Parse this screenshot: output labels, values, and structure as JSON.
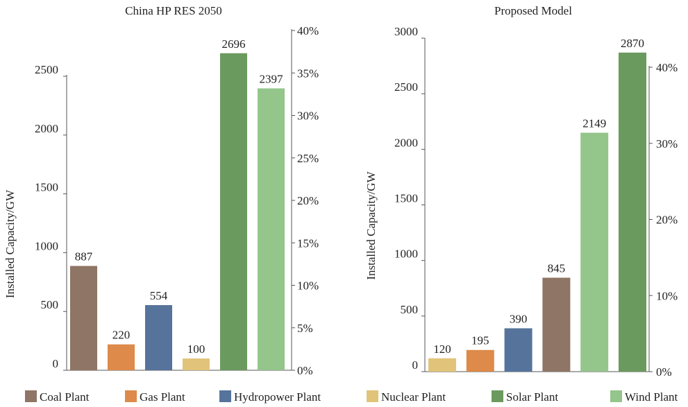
{
  "colors": {
    "Coal Plant": "#8f7565",
    "Gas Plant": "#dd8a4a",
    "Hydropower Plant": "#56749b",
    "Nuclear Plant": "#e1c47a",
    "Solar Plant": "#6b9a5e",
    "Wind Plant": "#94c58b"
  },
  "legend": [
    "Coal Plant",
    "Gas Plant",
    "Hydropower Plant",
    "Nuclear Plant",
    "Solar Plant",
    "Wind Plant"
  ],
  "chart_data": [
    {
      "type": "bar",
      "title": "China HP RES 2050",
      "ylabel": "Installed Capacity/GW",
      "categories": [
        "Coal Plant",
        "Gas Plant",
        "Hydropower Plant",
        "Nuclear Plant",
        "Solar Plant",
        "Wind Plant"
      ],
      "values": [
        887,
        220,
        554,
        100,
        2696,
        2397
      ],
      "value_labels": [
        "887",
        "220",
        "554",
        "100",
        "2696",
        "2397"
      ],
      "ylim": [
        0,
        2500
      ],
      "yticks": [
        0,
        500,
        1000,
        1500,
        2000,
        2500
      ],
      "ytick_labels": [
        "0",
        "500",
        "1000",
        "1500",
        "2000",
        "2500"
      ],
      "y2ticks": [
        0,
        5,
        10,
        15,
        20,
        25,
        30,
        35,
        40
      ],
      "y2tick_labels": [
        "0%",
        "5%",
        "10%",
        "15%",
        "20%",
        "25%",
        "30%",
        "35%",
        "40%"
      ]
    },
    {
      "type": "bar",
      "title": "Proposed Model",
      "ylabel": "Installed Capacity/GW",
      "categories": [
        "Nuclear Plant",
        "Gas Plant",
        "Hydropower Plant",
        "Coal Plant",
        "Wind Plant",
        "Solar Plant"
      ],
      "values": [
        120,
        195,
        390,
        845,
        2149,
        2870
      ],
      "value_labels": [
        "120",
        "195",
        "390",
        "845",
        "2149",
        "2870"
      ],
      "ylim": [
        0,
        3000
      ],
      "yticks": [
        0,
        500,
        1000,
        1500,
        2000,
        2500,
        3000
      ],
      "ytick_labels": [
        "0",
        "500",
        "1000",
        "1500",
        "2000",
        "2500",
        "3000"
      ],
      "y2ticks": [
        0,
        10,
        20,
        30,
        40
      ],
      "y2tick_labels": [
        "0%",
        "10%",
        "20%",
        "30%",
        "40%"
      ]
    }
  ]
}
